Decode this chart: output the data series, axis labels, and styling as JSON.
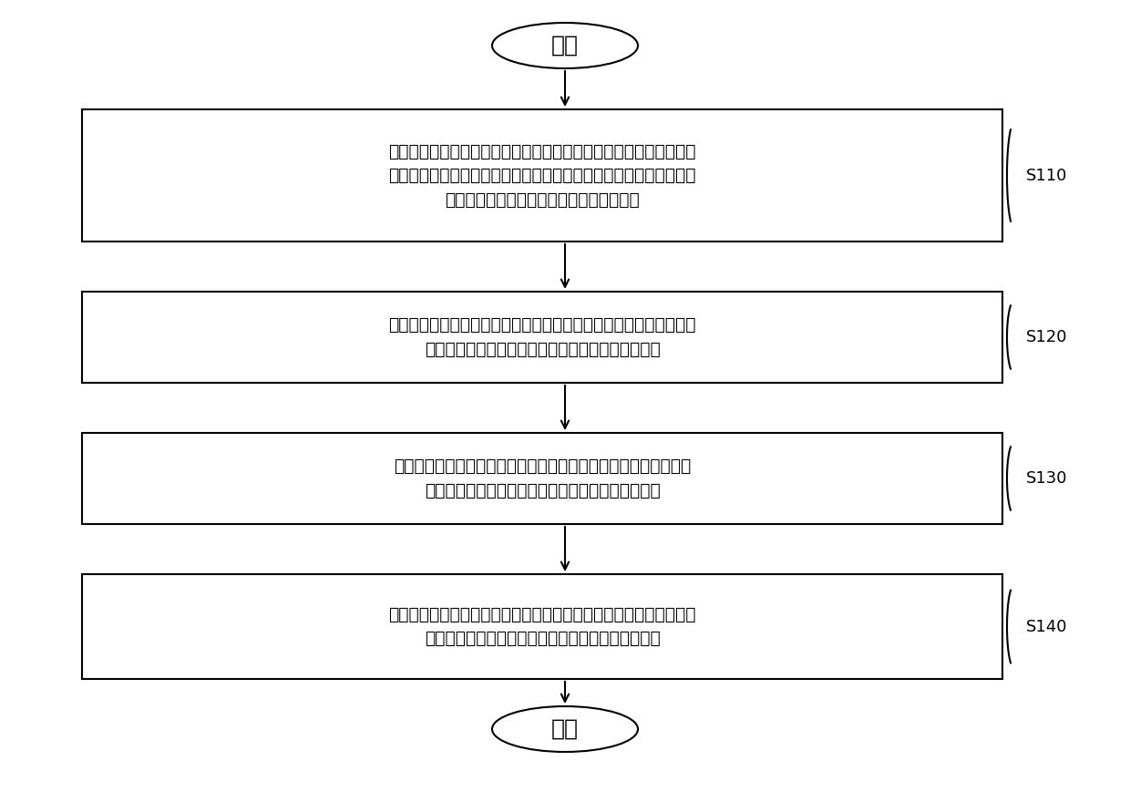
{
  "bg_color": "#ffffff",
  "border_color": "#000000",
  "text_color": "#000000",
  "start_end_label": [
    "开始",
    "结束"
  ],
  "steps": [
    {
      "id": "S110",
      "label": "S110",
      "text": "感知控制模块实时检测所述车辆的油箱油量，并将检测的油箱油量与\n预设阈值进行比较，若低于预设阈值，则通过所述传感网络通信服务\n器将当前的油箱油量发送至所述管理服务器"
    },
    {
      "id": "S120",
      "label": "S120",
      "text": "感知控制模块还接收安装于所述车辆的定位装置采集的车辆所处的当\n前位置，并将车辆的当前位置发送至所述管理服务器"
    },
    {
      "id": "S130",
      "label": "S130",
      "text": "管理服务器将接收的油箱油量与预设油量进行比较，若低于预设油\n量，则将所述车辆的当前位置发送至所述服务服务器"
    },
    {
      "id": "S140",
      "label": "S140",
      "text": "服务服务器按照预设规则根据所述车辆的当前位置确定附近的加油站\n信息，并将所述加油站信息发送至所述用户终端设备"
    }
  ],
  "figsize": [
    12.4,
    8.8
  ],
  "dpi": 100
}
